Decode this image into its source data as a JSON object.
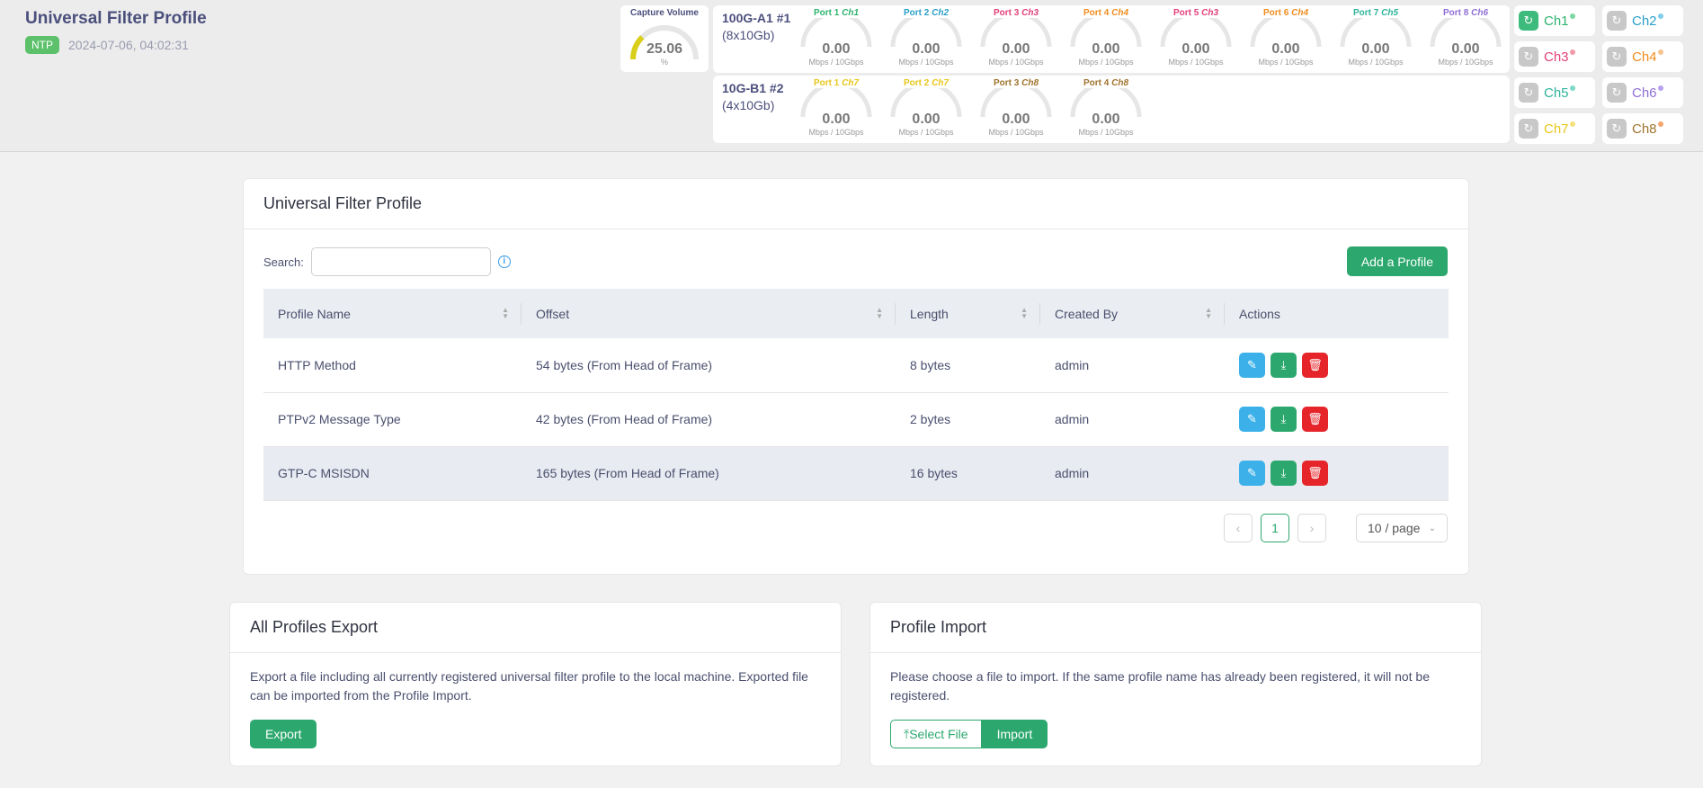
{
  "header": {
    "title": "Universal Filter Profile",
    "badge": "NTP",
    "datetime": "2024-07-06, 04:02:31"
  },
  "capture": {
    "title": "Capture Volume",
    "value": "25.06",
    "unit": "%",
    "level_percent": 25.06
  },
  "cards": [
    {
      "name": "100G-A1 #1",
      "spec": "(8x10Gb)",
      "ports": [
        {
          "port": "Port 1",
          "ch": "Ch1",
          "color": "#2fb36e",
          "value": "0.00",
          "unit": "Mbps / 10Gbps"
        },
        {
          "port": "Port 2",
          "ch": "Ch2",
          "color": "#2a9fc9",
          "value": "0.00",
          "unit": "Mbps / 10Gbps"
        },
        {
          "port": "Port 3",
          "ch": "Ch3",
          "color": "#e2407a",
          "value": "0.00",
          "unit": "Mbps / 10Gbps"
        },
        {
          "port": "Port 4",
          "ch": "Ch4",
          "color": "#f08c1e",
          "value": "0.00",
          "unit": "Mbps / 10Gbps"
        },
        {
          "port": "Port 5",
          "ch": "Ch3",
          "color": "#e2407a",
          "value": "0.00",
          "unit": "Mbps / 10Gbps"
        },
        {
          "port": "Port 6",
          "ch": "Ch4",
          "color": "#f08c1e",
          "value": "0.00",
          "unit": "Mbps / 10Gbps"
        },
        {
          "port": "Port 7",
          "ch": "Ch5",
          "color": "#2fb39a",
          "value": "0.00",
          "unit": "Mbps / 10Gbps"
        },
        {
          "port": "Port 8",
          "ch": "Ch6",
          "color": "#8f6fd6",
          "value": "0.00",
          "unit": "Mbps / 10Gbps"
        }
      ]
    },
    {
      "name": "10G-B1 #2",
      "spec": "(4x10Gb)",
      "ports": [
        {
          "port": "Port 1",
          "ch": "Ch7",
          "color": "#e8c61a",
          "value": "0.00",
          "unit": "Mbps / 10Gbps"
        },
        {
          "port": "Port 2",
          "ch": "Ch7",
          "color": "#e8c61a",
          "value": "0.00",
          "unit": "Mbps / 10Gbps"
        },
        {
          "port": "Port 3",
          "ch": "Ch8",
          "color": "#a0732c",
          "value": "0.00",
          "unit": "Mbps / 10Gbps"
        },
        {
          "port": "Port 4",
          "ch": "Ch8",
          "color": "#a0732c",
          "value": "0.00",
          "unit": "Mbps / 10Gbps"
        }
      ]
    }
  ],
  "channels": [
    {
      "label": "Ch1",
      "color": "#2fb36e",
      "dot": "#7bd9a0",
      "active": true
    },
    {
      "label": "Ch2",
      "color": "#2a9fc9",
      "dot": "#7fcde9",
      "active": false
    },
    {
      "label": "Ch3",
      "color": "#e2407a",
      "dot": "#f29aa8",
      "active": false
    },
    {
      "label": "Ch4",
      "color": "#f08c1e",
      "dot": "#f5c48e",
      "active": false
    },
    {
      "label": "Ch5",
      "color": "#2fb39a",
      "dot": "#7bd9c6",
      "active": false
    },
    {
      "label": "Ch6",
      "color": "#8f6fd6",
      "dot": "#b89ff0",
      "active": false
    },
    {
      "label": "Ch7",
      "color": "#e8c61a",
      "dot": "#f5e27f",
      "active": false
    },
    {
      "label": "Ch8",
      "color": "#a0732c",
      "dot": "#f5a66c",
      "active": false
    }
  ],
  "main": {
    "title": "Universal Filter Profile",
    "search_label": "Search:",
    "search_value": "",
    "add_button": "Add a Profile",
    "columns": [
      "Profile Name",
      "Offset",
      "Length",
      "Created By",
      "Actions"
    ],
    "rows": [
      {
        "name": "HTTP Method",
        "offset": "54 bytes (From Head of Frame)",
        "length": "8 bytes",
        "created_by": "admin"
      },
      {
        "name": "PTPv2 Message Type",
        "offset": "42 bytes (From Head of Frame)",
        "length": "2 bytes",
        "created_by": "admin"
      },
      {
        "name": "GTP-C MSISDN",
        "offset": "165 bytes (From Head of Frame)",
        "length": "16 bytes",
        "created_by": "admin"
      }
    ],
    "pagination": {
      "prev": "‹",
      "current": "1",
      "next": "›",
      "page_size": "10 / page"
    }
  },
  "export": {
    "title": "All Profiles Export",
    "description": "Export a file including all currently registered universal filter profile to the local machine. Exported file can be imported from the Profile Import.",
    "button": "Export"
  },
  "import": {
    "title": "Profile Import",
    "description": "Please choose a file to import. If the same profile name has already been registered, it will not be registered.",
    "select_button": "Select File",
    "import_button": "Import"
  }
}
